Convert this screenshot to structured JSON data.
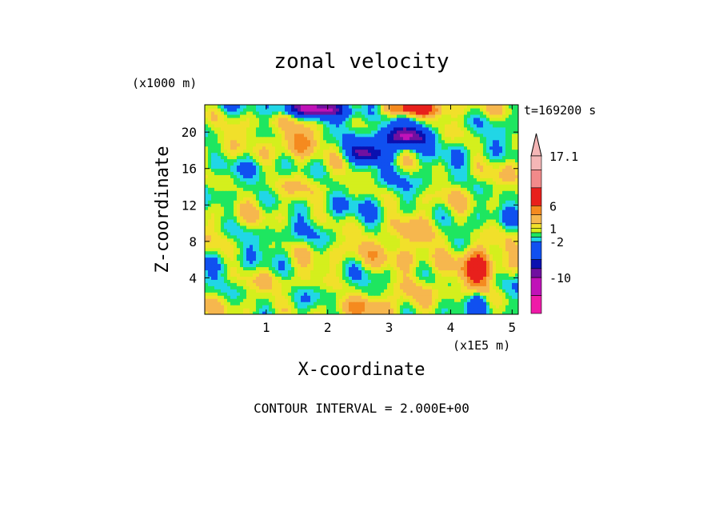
{
  "chart_data": {
    "type": "heatmap",
    "title": "zonal velocity",
    "xlabel": "X-coordinate",
    "ylabel": "Z-coordinate",
    "x_unit": "(x1E5 m)",
    "y_unit": "(x1000 m)",
    "time_label": "t=169200 s",
    "footer": "CONTOUR INTERVAL = 2.000E+00",
    "xlim": [
      0,
      5.1
    ],
    "ylim": [
      0,
      23
    ],
    "x_ticks": [
      "1",
      "2",
      "3",
      "4",
      "5"
    ],
    "x_tick_values": [
      1,
      2,
      3,
      4,
      5
    ],
    "y_ticks": [
      "4",
      "8",
      "12",
      "16",
      "20"
    ],
    "y_tick_values": [
      4,
      8,
      12,
      16,
      20
    ],
    "colorbar": {
      "labels": [
        "17.1",
        "6",
        "1",
        "-2",
        "-10"
      ],
      "label_values": [
        17.1,
        6,
        1,
        -2,
        -10
      ],
      "levels": [
        {
          "color": "#f4b6b6",
          "lo": 14,
          "hi": 17.1
        },
        {
          "color": "#f28a8a",
          "lo": 10,
          "hi": 14
        },
        {
          "color": "#e8201c",
          "lo": 6,
          "hi": 10
        },
        {
          "color": "#f58a1f",
          "lo": 4,
          "hi": 6
        },
        {
          "color": "#f6b74e",
          "lo": 2,
          "hi": 4
        },
        {
          "color": "#f1e02a",
          "lo": 1,
          "hi": 2
        },
        {
          "color": "#d4ef1d",
          "lo": 0,
          "hi": 1
        },
        {
          "color": "#1ee660",
          "lo": -1,
          "hi": 0
        },
        {
          "color": "#21d6e6",
          "lo": -2,
          "hi": -1
        },
        {
          "color": "#1050f0",
          "lo": -6,
          "hi": -2
        },
        {
          "color": "#0a10b0",
          "lo": -8,
          "hi": -6
        },
        {
          "color": "#7010a0",
          "lo": -10,
          "hi": -8
        },
        {
          "color": "#c012b8",
          "lo": -14,
          "hi": -10
        },
        {
          "color": "#ef1aa8",
          "lo": -18,
          "hi": -14
        }
      ]
    },
    "features": [
      {
        "kind": "jet",
        "x": 1.8,
        "z": 22.6,
        "sx": 0.55,
        "sz": 0.9,
        "u": -11
      },
      {
        "kind": "jet",
        "x": 3.35,
        "z": 22.6,
        "sx": 0.45,
        "sz": 0.8,
        "u": 9
      },
      {
        "kind": "jet",
        "x": 3.25,
        "z": 19.6,
        "sx": 0.42,
        "sz": 1.2,
        "u": -12
      },
      {
        "kind": "jet",
        "x": 2.65,
        "z": 17.6,
        "sx": 0.35,
        "sz": 1.2,
        "u": -9
      },
      {
        "kind": "jet",
        "x": 1.5,
        "z": 18.8,
        "sx": 0.35,
        "sz": 1.5,
        "u": 6
      },
      {
        "kind": "jet",
        "x": 4.45,
        "z": 5.2,
        "sx": 0.25,
        "sz": 2.5,
        "u": 7
      },
      {
        "kind": "jet",
        "x": 2.5,
        "z": 1.0,
        "sx": 0.6,
        "sz": 1.0,
        "u": 4
      },
      {
        "kind": "jet",
        "x": 3.3,
        "z": 7.0,
        "sx": 0.7,
        "sz": 3.0,
        "u": 3
      },
      {
        "kind": "jet",
        "x": 2.8,
        "z": 10.0,
        "sx": 0.4,
        "sz": 2.0,
        "u": -1.5
      },
      {
        "kind": "jet",
        "x": 4.45,
        "z": 1.5,
        "sx": 0.15,
        "sz": 1.0,
        "u": -4
      }
    ]
  }
}
